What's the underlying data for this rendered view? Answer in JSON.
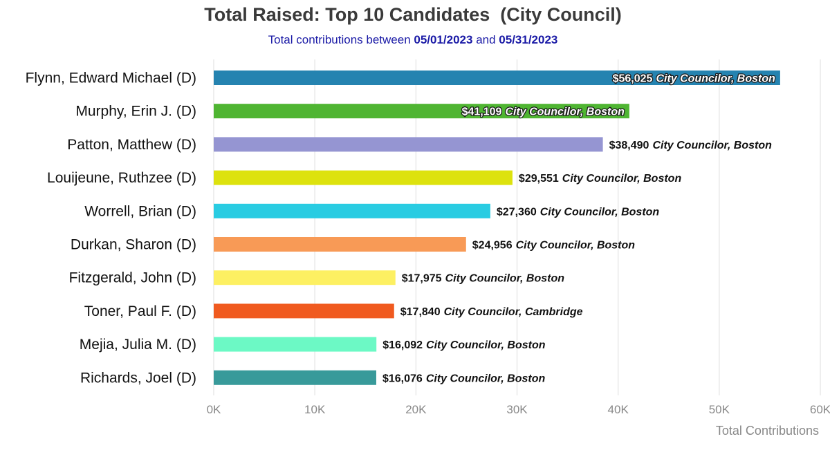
{
  "chart_data": {
    "type": "bar",
    "orientation": "horizontal",
    "title": "Total Raised: Top 10 Candidates  (City Council)",
    "subtitle": {
      "prefix": "Total contributions between ",
      "start_date": "05/01/2023",
      "middle": " and ",
      "end_date": "05/31/2023"
    },
    "xlabel": "Total Contributions",
    "ylabel": "",
    "xlim": [
      0,
      60000
    ],
    "xticks": [
      0,
      10000,
      20000,
      30000,
      40000,
      50000,
      60000
    ],
    "xtick_labels": [
      "0K",
      "10K",
      "20K",
      "30K",
      "40K",
      "50K",
      "60K"
    ],
    "grid": true,
    "categories": [
      "Flynn, Edward Michael (D)",
      "Murphy, Erin J. (D)",
      "Patton, Matthew (D)",
      "Louijeune, Ruthzee (D)",
      "Worrell, Brian (D)",
      "Durkan, Sharon (D)",
      "Fitzgerald, John (D)",
      "Toner, Paul F. (D)",
      "Mejia, Julia M. (D)",
      "Richards, Joel (D)"
    ],
    "values": [
      56025,
      41109,
      38490,
      29551,
      27360,
      24956,
      17975,
      17840,
      16092,
      16076
    ],
    "amount_labels": [
      "$56,025",
      "$41,109",
      "$38,490",
      "$29,551",
      "$27,360",
      "$24,956",
      "$17,975",
      "$17,840",
      "$16,092",
      "$16,076"
    ],
    "roles": [
      "City Councilor, Boston",
      "City Councilor, Boston",
      "City Councilor, Boston",
      "City Councilor, Boston",
      "City Councilor, Boston",
      "City Councilor, Boston",
      "City Councilor, Boston",
      "City Councilor, Cambridge",
      "City Councilor, Boston",
      "City Councilor, Boston"
    ],
    "label_inside": [
      true,
      true,
      false,
      false,
      false,
      false,
      false,
      false,
      false,
      false
    ],
    "colors": [
      "#2583b0",
      "#4fb532",
      "#9595d2",
      "#dde20e",
      "#29cce2",
      "#f89a56",
      "#fdf062",
      "#f05a1f",
      "#6cf9c5",
      "#389a9a"
    ]
  }
}
